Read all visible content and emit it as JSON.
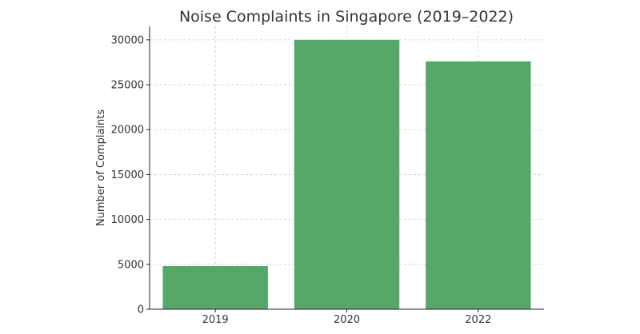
{
  "chart_data": {
    "type": "bar",
    "title": "Noise Complaints in Singapore (2019–2022)",
    "xlabel": "",
    "ylabel": "Number of Complaints",
    "categories": [
      "2019",
      "2020",
      "2022"
    ],
    "values": [
      4800,
      30000,
      27600
    ],
    "ylim": [
      0,
      31500
    ],
    "yticks": [
      0,
      5000,
      10000,
      15000,
      20000,
      25000,
      30000
    ],
    "grid": true,
    "bar_color": "#55a868"
  }
}
